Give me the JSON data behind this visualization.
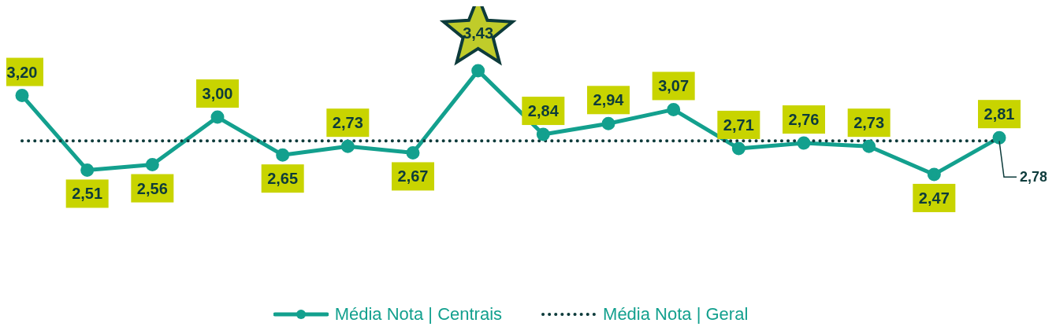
{
  "chart_data": {
    "type": "line",
    "categories": [
      null,
      null,
      null,
      null,
      null,
      null,
      null,
      null,
      null,
      null,
      null,
      null,
      null,
      null,
      null,
      null
    ],
    "series": [
      {
        "name": "Média Nota | Centrais",
        "color": "#13a08e",
        "marker": "circle",
        "line_style": "solid",
        "values": [
          3.2,
          2.51,
          2.56,
          3.0,
          2.65,
          2.73,
          2.67,
          3.43,
          2.84,
          2.94,
          3.07,
          2.71,
          2.76,
          2.73,
          2.47,
          2.81
        ],
        "value_labels": [
          "3,20",
          "2,51",
          "2,56",
          "3,00",
          "2,65",
          "2,73",
          "2,67",
          "3,43",
          "2,84",
          "2,94",
          "3,07",
          "2,71",
          "2,76",
          "2,73",
          "2,47",
          "2,81"
        ]
      },
      {
        "name": "Média Nota | Geral",
        "color": "#0d3b3b",
        "marker": "none",
        "line_style": "dotted",
        "values": [
          2.78,
          2.78,
          2.78,
          2.78,
          2.78,
          2.78,
          2.78,
          2.78,
          2.78,
          2.78,
          2.78,
          2.78,
          2.78,
          2.78,
          2.78,
          2.78
        ],
        "value_labels": [
          null,
          null,
          null,
          null,
          null,
          null,
          null,
          null,
          null,
          null,
          null,
          null,
          null,
          null,
          null,
          "2,78"
        ]
      }
    ],
    "tick_labels": false,
    "legend": "bottom"
  }
}
